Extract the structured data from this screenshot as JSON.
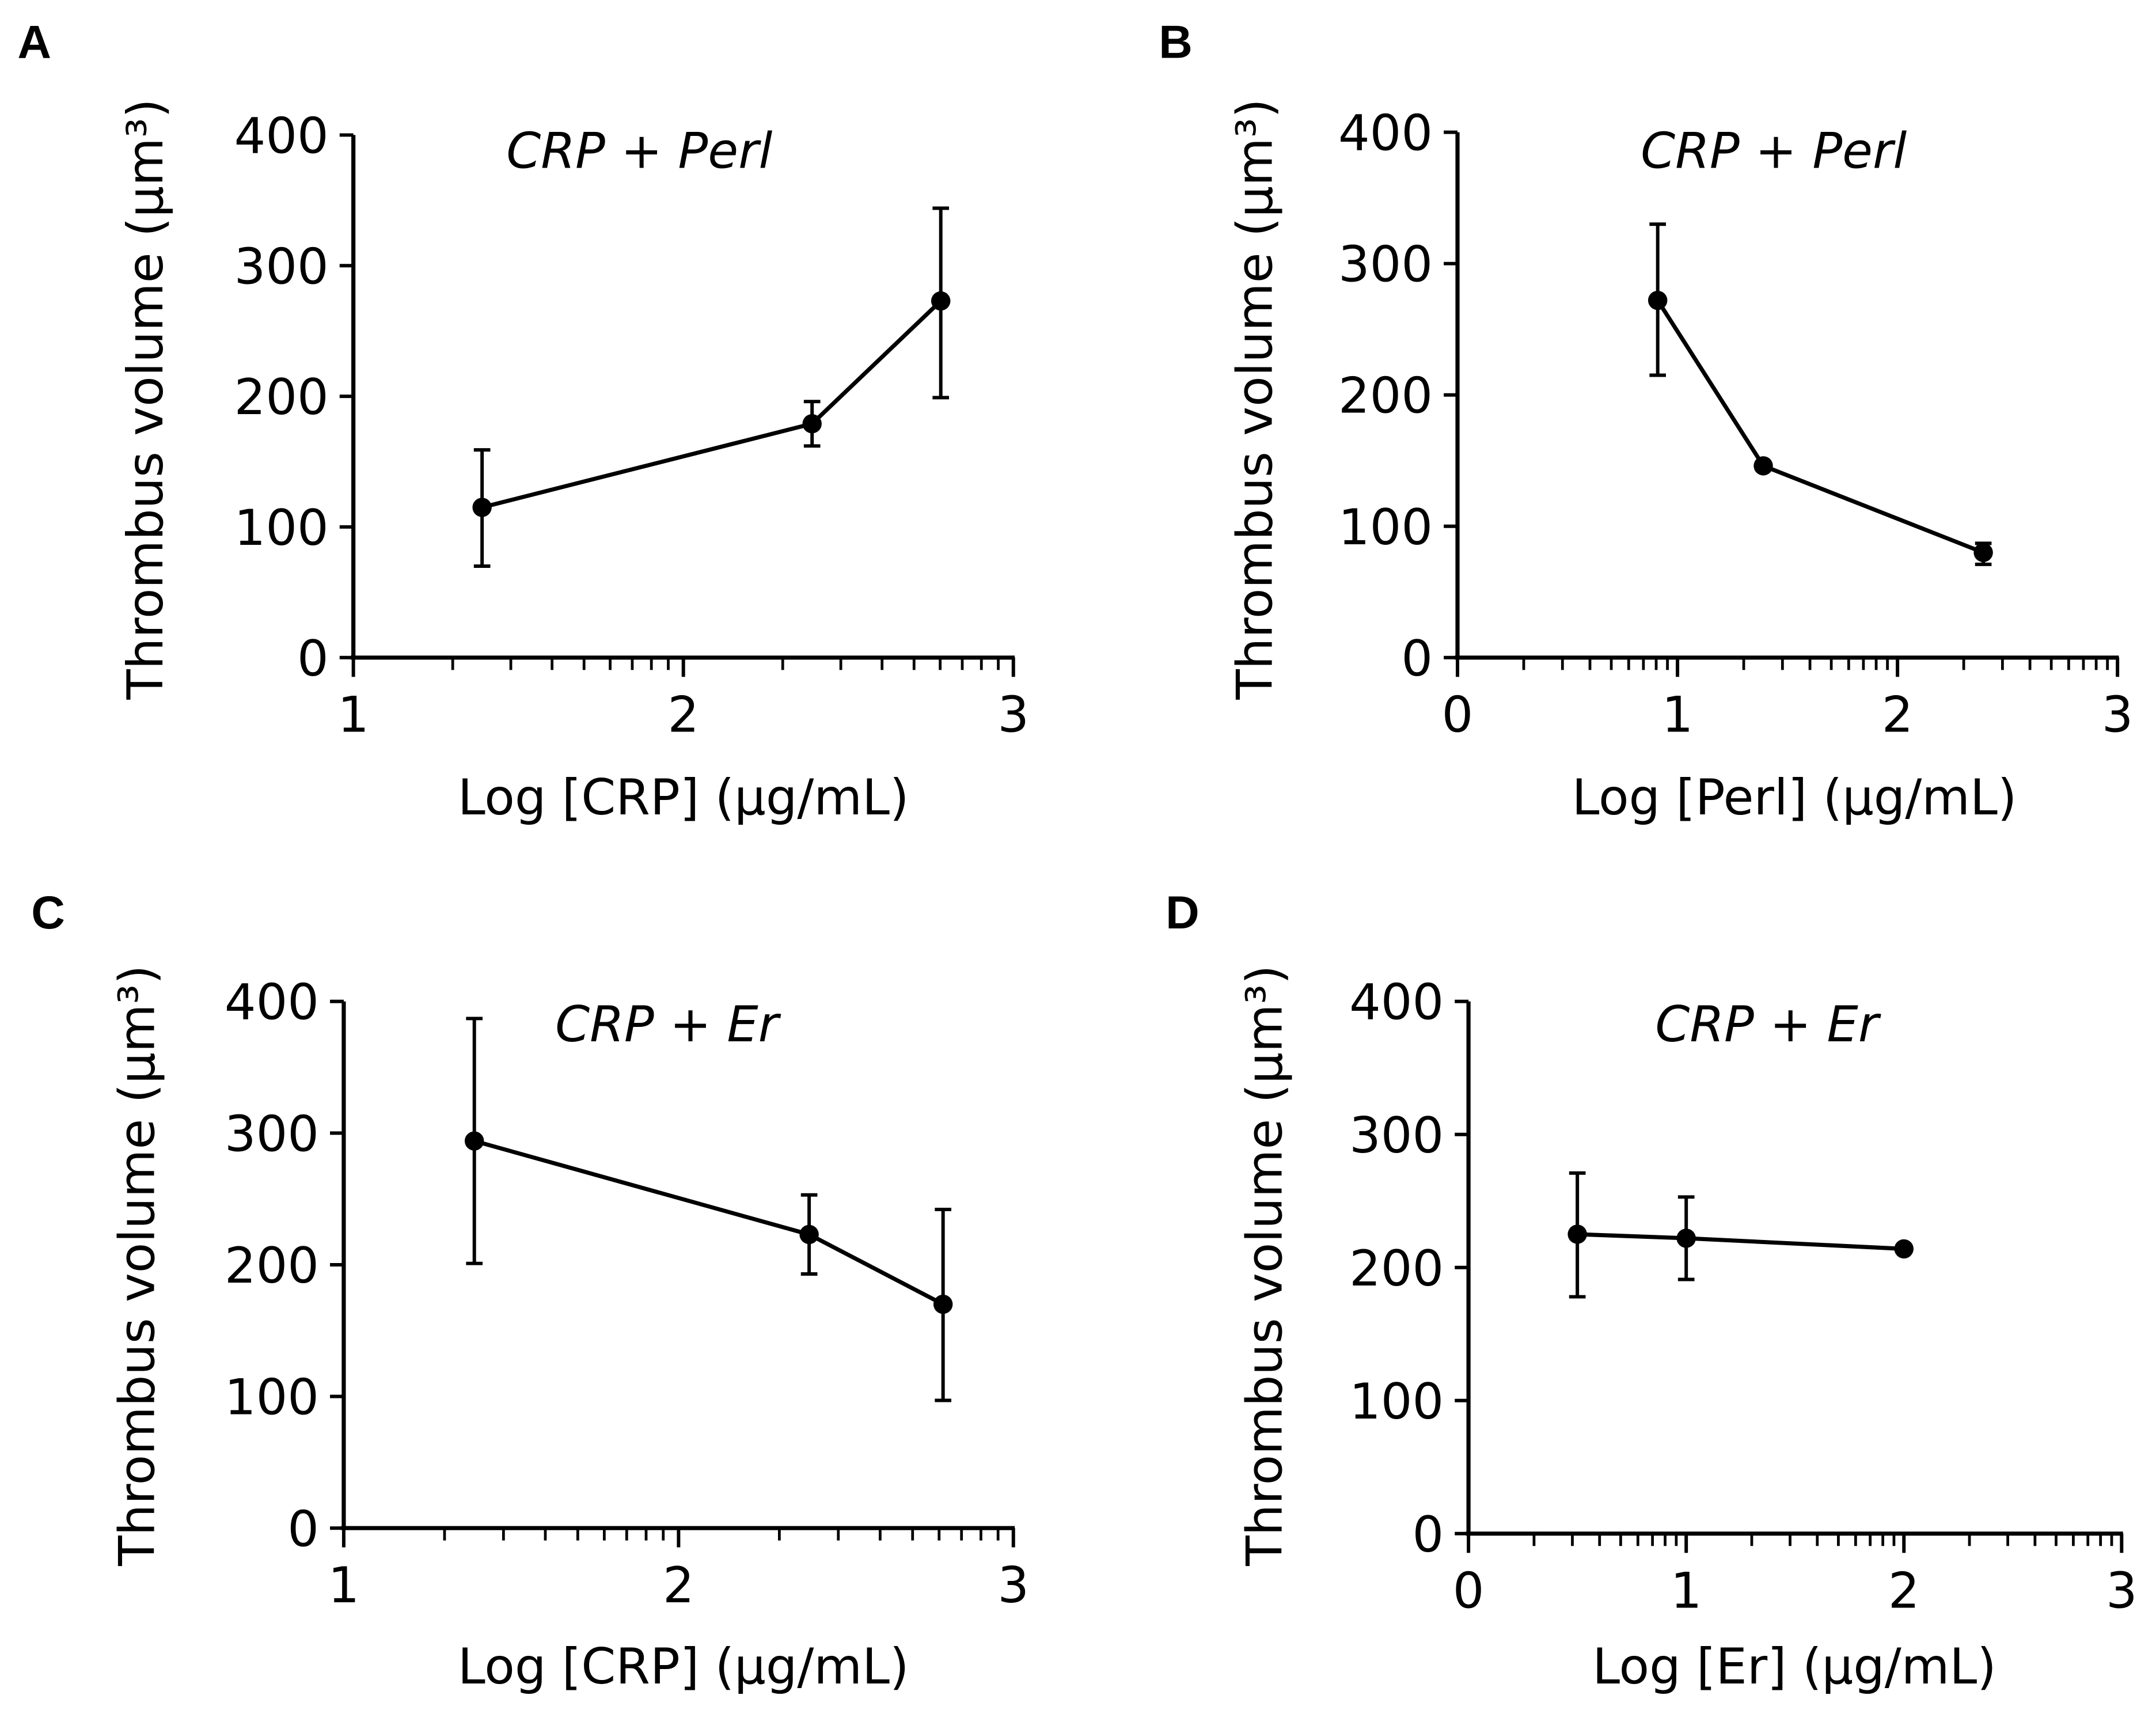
{
  "chart_data": [
    {
      "panel": "A",
      "type": "line",
      "title": "CRP + Perl",
      "xlabel": "Log [CRP] (µg/mL)",
      "ylabel": "Thrombus volume (µm³)",
      "xlim": [
        1,
        3
      ],
      "ylim": [
        0,
        400
      ],
      "xticks": [
        "1",
        "2",
        "3"
      ],
      "yticks": [
        "0",
        "100",
        "200",
        "300",
        "400"
      ],
      "x_minor_log_ticks": true,
      "grid": false,
      "x": [
        1.39,
        2.39,
        2.78
      ],
      "y": [
        115,
        179,
        273
      ],
      "err_low": [
        70,
        162,
        199
      ],
      "err_high": [
        159,
        196,
        344
      ]
    },
    {
      "panel": "B",
      "type": "line",
      "title": "CRP + Perl",
      "xlabel": "Log [Perl] (µg/mL)",
      "ylabel": "Thrombus volume (µm³)",
      "xlim": [
        0,
        3
      ],
      "ylim": [
        0,
        400
      ],
      "xticks": [
        "0",
        "1",
        "2",
        "3"
      ],
      "yticks": [
        "0",
        "100",
        "200",
        "300",
        "400"
      ],
      "x_minor_log_ticks": true,
      "grid": false,
      "x": [
        0.91,
        1.39,
        2.39
      ],
      "y": [
        272,
        146,
        80
      ],
      "err_low": [
        215,
        146,
        71
      ],
      "err_high": [
        330,
        146,
        87
      ]
    },
    {
      "panel": "C",
      "type": "line",
      "title": "CRP + Er",
      "xlabel": "Log [CRP] (µg/mL)",
      "ylabel": "Thrombus volume (µm³)",
      "xlim": [
        1,
        3
      ],
      "ylim": [
        0,
        400
      ],
      "xticks": [
        "1",
        "2",
        "3"
      ],
      "yticks": [
        "0",
        "100",
        "200",
        "300",
        "400"
      ],
      "x_minor_log_ticks": true,
      "grid": false,
      "x": [
        1.39,
        2.39,
        2.79
      ],
      "y": [
        294,
        223,
        170
      ],
      "err_low": [
        201,
        193,
        97
      ],
      "err_high": [
        387,
        253,
        242
      ]
    },
    {
      "panel": "D",
      "type": "line",
      "title": "CRP + Er",
      "xlabel": "Log [Er] (µg/mL)",
      "ylabel": "Thrombus volume (µm³)",
      "xlim": [
        0,
        3
      ],
      "ylim": [
        0,
        400
      ],
      "xticks": [
        "0",
        "1",
        "2",
        "3"
      ],
      "yticks": [
        "0",
        "100",
        "200",
        "300",
        "400"
      ],
      "x_minor_log_ticks": true,
      "grid": false,
      "x": [
        0.5,
        1.0,
        2.0
      ],
      "y": [
        225,
        222,
        214
      ],
      "err_low": [
        178,
        191,
        214
      ],
      "err_high": [
        271,
        253,
        214
      ]
    }
  ],
  "colors": {
    "line": "#000000",
    "marker": "#000000"
  }
}
